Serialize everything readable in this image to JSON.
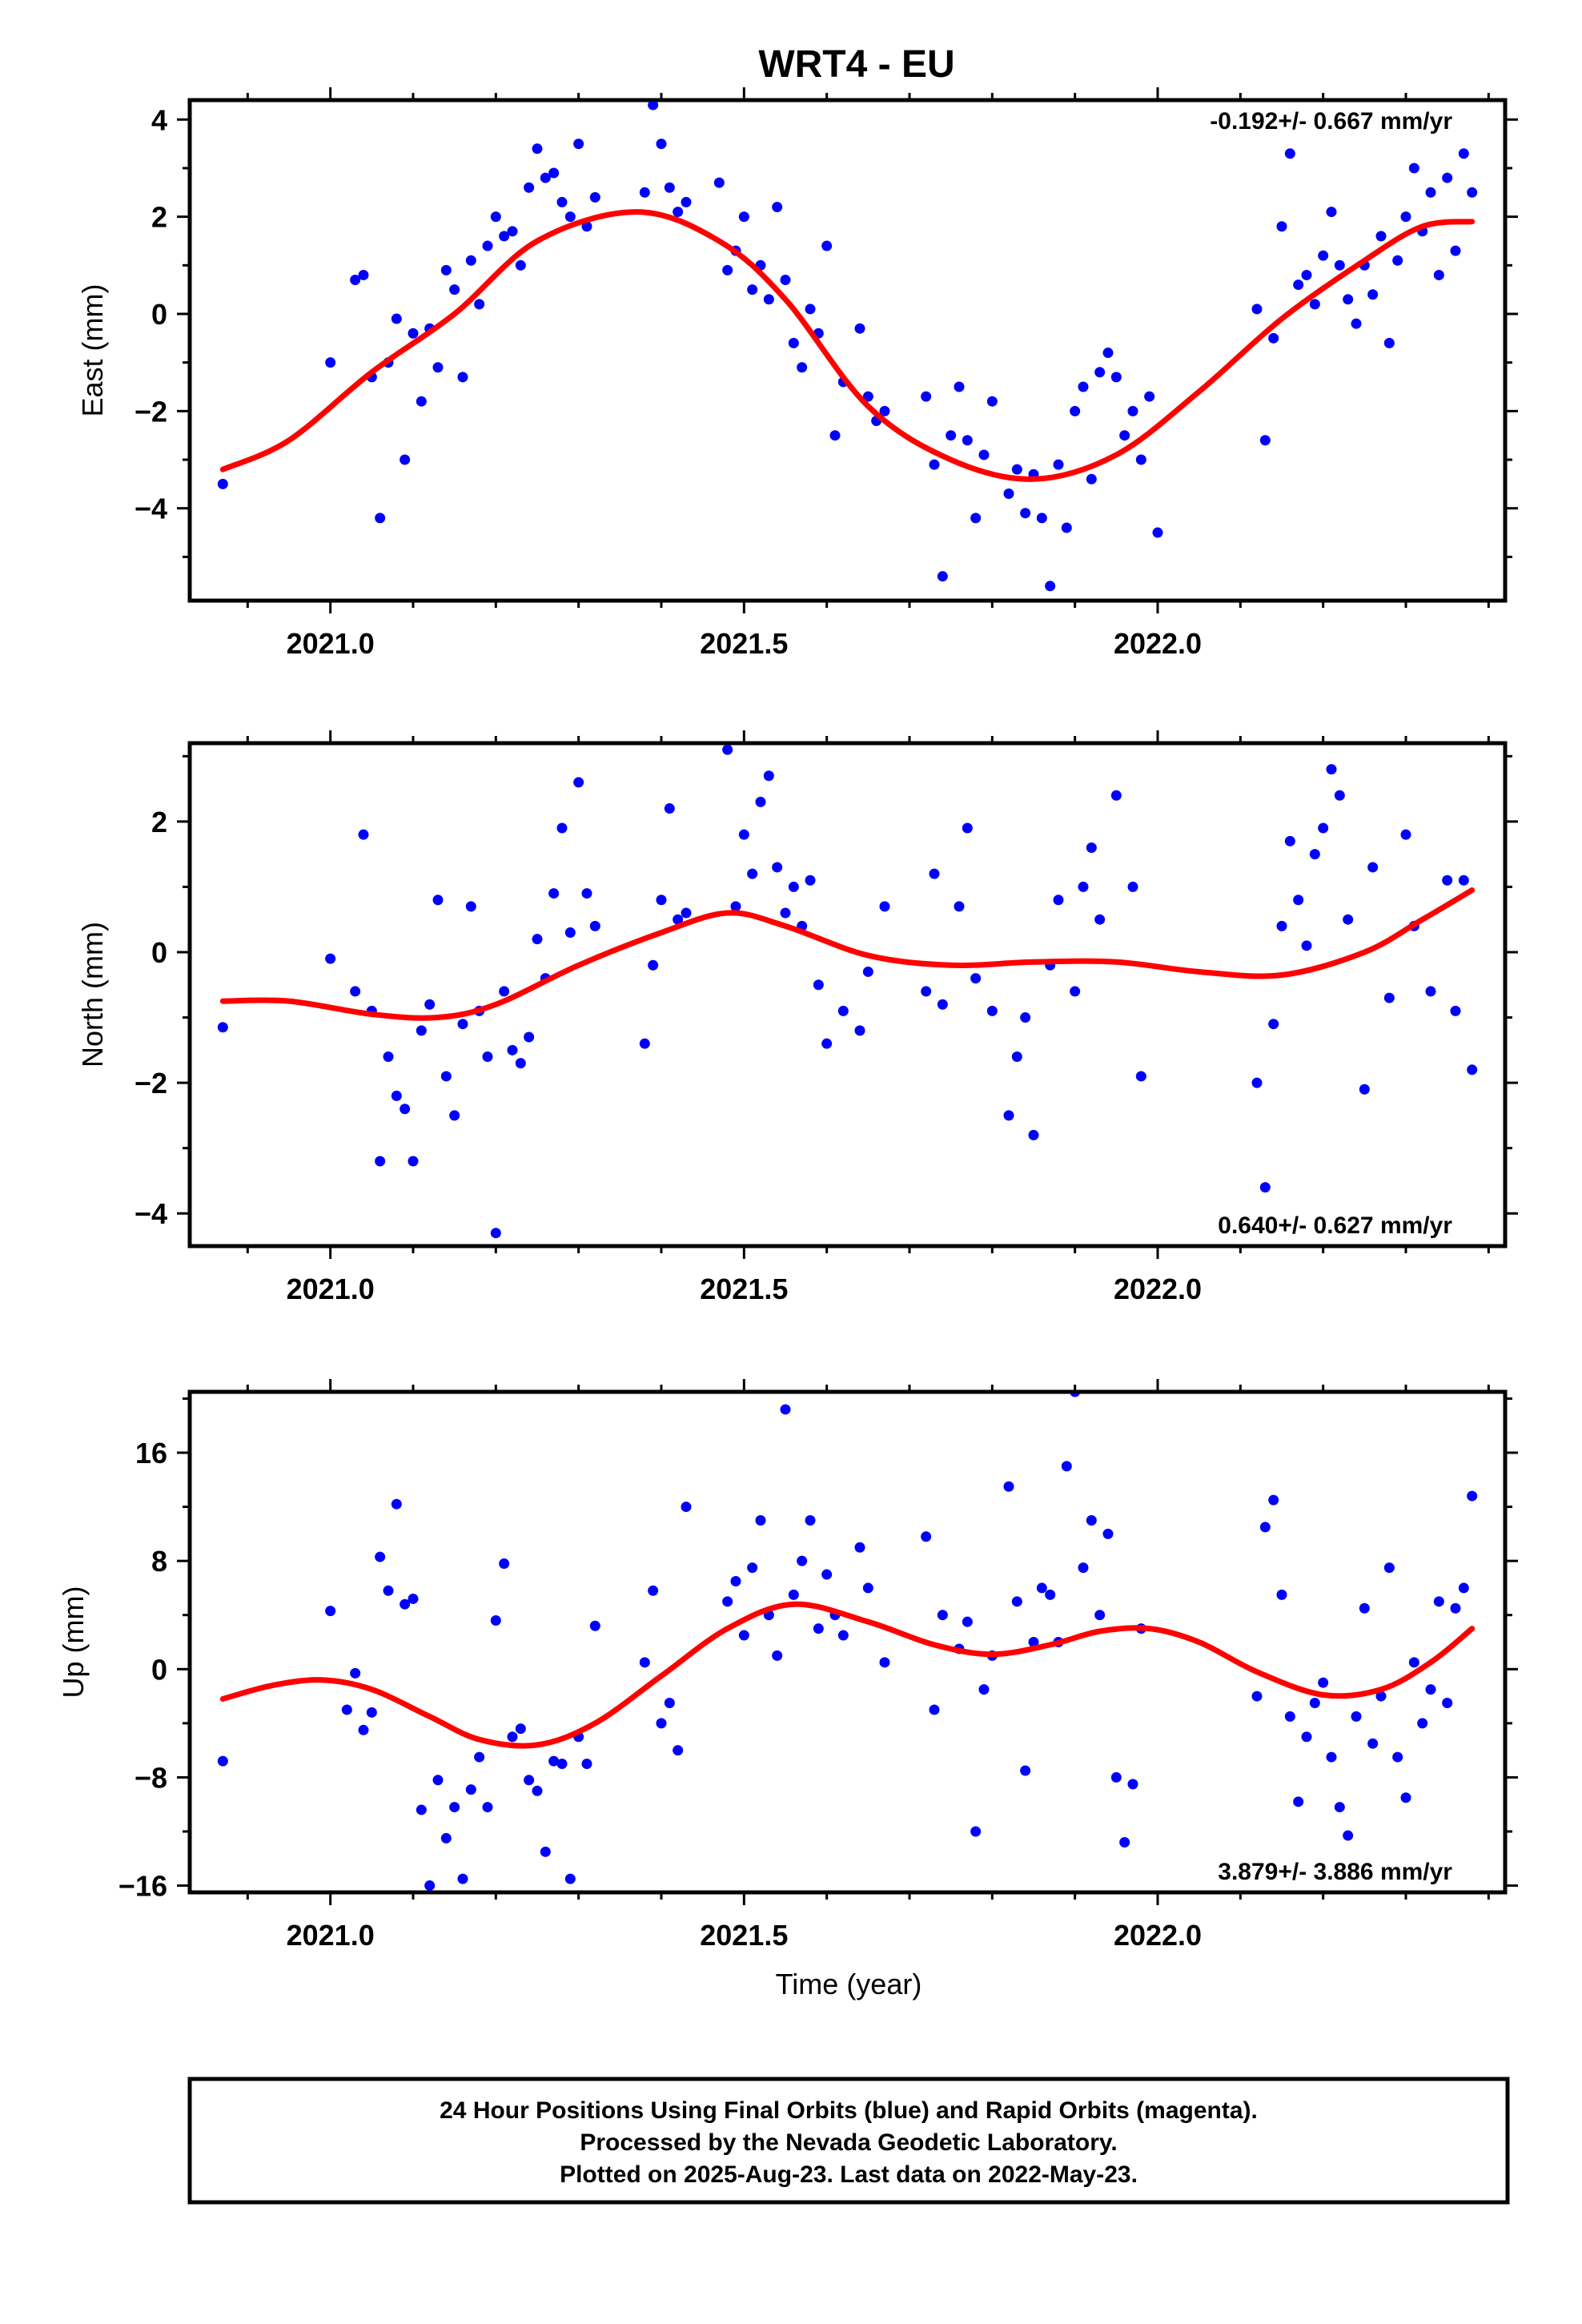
{
  "title": "WRT4 - EU",
  "x_axis_label": "Time (year)",
  "footer": {
    "line1": "24 Hour Positions Using Final Orbits (blue) and Rapid Orbits (magenta).",
    "line2": "Processed by the Nevada Geodetic Laboratory.",
    "line3": "Plotted on 2025-Aug-23. Last data on 2022-May-23."
  },
  "colors": {
    "points": "#0000ff",
    "fit": "#ff0000",
    "axis": "#000000"
  },
  "chart_data": [
    {
      "type": "scatter",
      "panel": "east",
      "ylabel": "East (mm)",
      "rate_text": "-0.192+/- 0.667 mm/yr",
      "rate_position": "top-right",
      "xlim": [
        2020.83,
        2022.42
      ],
      "ylim": [
        -5.9,
        4.4
      ],
      "xticks": [
        2021.0,
        2021.5,
        2022.0
      ],
      "xtick_labels": [
        "2021.0",
        "2021.5",
        "2022.0"
      ],
      "yticks": [
        -4,
        -2,
        0,
        2,
        4
      ],
      "ytick_labels": [
        "−4",
        "−2",
        "0",
        "2",
        "4"
      ],
      "fit_curve": {
        "x": [
          2020.87,
          2020.95,
          2021.05,
          2021.15,
          2021.25,
          2021.37,
          2021.47,
          2021.55,
          2021.65,
          2021.75,
          2021.85,
          2021.95,
          2022.05,
          2022.15,
          2022.25,
          2022.32,
          2022.38
        ],
        "y": [
          -3.2,
          -2.6,
          -1.2,
          0.0,
          1.5,
          2.1,
          1.5,
          0.3,
          -1.9,
          -3.0,
          -3.4,
          -2.9,
          -1.6,
          -0.1,
          1.1,
          1.8,
          1.9
        ]
      },
      "series": [
        {
          "x": [
            2020.87,
            2021.0,
            2021.03,
            2021.04,
            2021.05,
            2021.06,
            2021.07,
            2021.08,
            2021.09,
            2021.1,
            2021.11,
            2021.12,
            2021.13,
            2021.14,
            2021.15,
            2021.16,
            2021.17,
            2021.18,
            2021.19,
            2021.2,
            2021.21,
            2021.22,
            2021.23,
            2021.24,
            2021.25,
            2021.26,
            2021.27,
            2021.28,
            2021.29,
            2021.3,
            2021.31,
            2021.32,
            2021.38,
            2021.39,
            2021.4,
            2021.41,
            2021.42,
            2021.43,
            2021.47,
            2021.48,
            2021.49,
            2021.5,
            2021.51,
            2021.52,
            2021.53,
            2021.54,
            2021.55,
            2021.56,
            2021.57,
            2021.58,
            2021.59,
            2021.6,
            2021.61,
            2021.62,
            2021.64,
            2021.65,
            2021.66,
            2021.67,
            2021.72,
            2021.73,
            2021.74,
            2021.75,
            2021.76,
            2021.77,
            2021.78,
            2021.79,
            2021.8,
            2021.82,
            2021.83,
            2021.84,
            2021.85,
            2021.86,
            2021.87,
            2021.88,
            2021.89,
            2021.9,
            2021.91,
            2021.92,
            2021.93,
            2021.94,
            2021.95,
            2021.96,
            2021.97,
            2021.98,
            2021.99,
            2022.0,
            2022.12,
            2022.13,
            2022.14,
            2022.15,
            2022.16,
            2022.17,
            2022.18,
            2022.19,
            2022.2,
            2022.21,
            2022.22,
            2022.23,
            2022.24,
            2022.25,
            2022.26,
            2022.27,
            2022.28,
            2022.29,
            2022.3,
            2022.31,
            2022.32,
            2022.33,
            2022.34,
            2022.35,
            2022.36,
            2022.37,
            2022.38
          ],
          "y": [
            -3.5,
            -1.0,
            0.7,
            0.8,
            -1.3,
            -4.2,
            -1.0,
            -0.1,
            -3.0,
            -0.4,
            -1.8,
            -0.3,
            -1.1,
            0.9,
            0.5,
            -1.3,
            1.1,
            0.2,
            1.4,
            2.0,
            1.6,
            1.7,
            1.0,
            2.6,
            3.4,
            2.8,
            2.9,
            2.3,
            2.0,
            3.5,
            1.8,
            2.4,
            2.5,
            4.3,
            3.5,
            2.6,
            2.1,
            2.3,
            2.7,
            0.9,
            1.3,
            2.0,
            0.5,
            1.0,
            0.3,
            2.2,
            0.7,
            -0.6,
            -1.1,
            0.1,
            -0.4,
            1.4,
            -2.5,
            -1.4,
            -0.3,
            -1.7,
            -2.2,
            -2.0,
            -1.7,
            -3.1,
            -5.4,
            -2.5,
            -1.5,
            -2.6,
            -4.2,
            -2.9,
            -1.8,
            -3.7,
            -3.2,
            -4.1,
            -3.3,
            -4.2,
            -5.6,
            -3.1,
            -4.4,
            -2.0,
            -1.5,
            -3.4,
            -1.2,
            -0.8,
            -1.3,
            -2.5,
            -2.0,
            -3.0,
            -1.7,
            -4.5,
            0.1,
            -2.6,
            -0.5,
            1.8,
            3.3,
            0.6,
            0.8,
            0.2,
            1.2,
            2.1,
            1.0,
            0.3,
            -0.2,
            1.0,
            0.4,
            1.6,
            -0.6,
            1.1,
            2.0,
            3.0,
            1.7,
            2.5,
            0.8,
            2.8,
            1.3,
            3.3,
            2.5
          ]
        }
      ]
    },
    {
      "type": "scatter",
      "panel": "north",
      "ylabel": "North (mm)",
      "rate_text": "0.640+/- 0.627 mm/yr",
      "rate_position": "bottom-right",
      "xlim": [
        2020.83,
        2022.42
      ],
      "ylim": [
        -4.5,
        3.2
      ],
      "xticks": [
        2021.0,
        2021.5,
        2022.0
      ],
      "xtick_labels": [
        "2021.0",
        "2021.5",
        "2022.0"
      ],
      "yticks": [
        -4,
        -2,
        0,
        2
      ],
      "ytick_labels": [
        "−4",
        "−2",
        "0",
        "2"
      ],
      "fit_curve": {
        "x": [
          2020.87,
          2020.95,
          2021.05,
          2021.13,
          2021.2,
          2021.3,
          2021.4,
          2021.48,
          2021.55,
          2021.65,
          2021.75,
          2021.85,
          2021.95,
          2022.05,
          2022.15,
          2022.25,
          2022.32,
          2022.38
        ],
        "y": [
          -0.75,
          -0.75,
          -0.95,
          -1.0,
          -0.8,
          -0.2,
          0.3,
          0.6,
          0.4,
          -0.05,
          -0.2,
          -0.15,
          -0.15,
          -0.3,
          -0.35,
          0.0,
          0.5,
          0.95
        ]
      },
      "series": [
        {
          "x": [
            2020.87,
            2021.0,
            2021.03,
            2021.04,
            2021.05,
            2021.06,
            2021.07,
            2021.08,
            2021.09,
            2021.1,
            2021.11,
            2021.12,
            2021.13,
            2021.14,
            2021.15,
            2021.16,
            2021.17,
            2021.18,
            2021.19,
            2021.2,
            2021.21,
            2021.22,
            2021.23,
            2021.24,
            2021.25,
            2021.26,
            2021.27,
            2021.28,
            2021.29,
            2021.3,
            2021.31,
            2021.32,
            2021.38,
            2021.39,
            2021.4,
            2021.41,
            2021.42,
            2021.43,
            2021.48,
            2021.49,
            2021.5,
            2021.51,
            2021.52,
            2021.53,
            2021.54,
            2021.55,
            2021.56,
            2021.57,
            2021.58,
            2021.59,
            2021.6,
            2021.62,
            2021.64,
            2021.65,
            2021.67,
            2021.72,
            2021.73,
            2021.74,
            2021.76,
            2021.77,
            2021.78,
            2021.8,
            2021.82,
            2021.83,
            2021.84,
            2021.85,
            2021.87,
            2021.88,
            2021.9,
            2021.91,
            2021.92,
            2021.93,
            2021.95,
            2021.97,
            2021.98,
            2022.12,
            2022.13,
            2022.14,
            2022.15,
            2022.16,
            2022.17,
            2022.18,
            2022.19,
            2022.2,
            2022.21,
            2022.22,
            2022.23,
            2022.25,
            2022.26,
            2022.28,
            2022.3,
            2022.31,
            2022.33,
            2022.35,
            2022.36,
            2022.37,
            2022.38
          ],
          "y": [
            -1.15,
            -0.1,
            -0.6,
            1.8,
            -0.9,
            -3.2,
            -1.6,
            -2.2,
            -2.4,
            -3.2,
            -1.2,
            -0.8,
            0.8,
            -1.9,
            -2.5,
            -1.1,
            0.7,
            -0.9,
            -1.6,
            -4.3,
            -0.6,
            -1.5,
            -1.7,
            -1.3,
            0.2,
            -0.4,
            0.9,
            1.9,
            0.3,
            2.6,
            0.9,
            0.4,
            -1.4,
            -0.2,
            0.8,
            2.2,
            0.5,
            0.6,
            3.1,
            0.7,
            1.8,
            1.2,
            2.3,
            2.7,
            1.3,
            0.6,
            1.0,
            0.4,
            1.1,
            -0.5,
            -1.4,
            -0.9,
            -1.2,
            -0.3,
            0.7,
            -0.6,
            1.2,
            -0.8,
            0.7,
            1.9,
            -0.4,
            -0.9,
            -2.5,
            -1.6,
            -1.0,
            -2.8,
            -0.2,
            0.8,
            -0.6,
            1.0,
            1.6,
            0.5,
            2.4,
            1.0,
            -1.9,
            -2.0,
            -3.6,
            -1.1,
            0.4,
            1.7,
            0.8,
            0.1,
            1.5,
            1.9,
            2.8,
            2.4,
            0.5,
            -2.1,
            1.3,
            -0.7,
            1.8,
            0.4,
            -0.6,
            1.1,
            -0.9,
            1.1,
            -1.8
          ]
        }
      ]
    },
    {
      "type": "scatter",
      "panel": "up",
      "ylabel": "Up (mm)",
      "rate_text": "3.879+/- 3.886 mm/yr",
      "rate_position": "bottom-right",
      "xlim": [
        2020.83,
        2022.42
      ],
      "ylim": [
        -16.5,
        20.5
      ],
      "xticks": [
        2021.0,
        2021.5,
        2022.0
      ],
      "xtick_labels": [
        "2021.0",
        "2021.5",
        "2022.0"
      ],
      "yticks": [
        -16,
        -8,
        0,
        8,
        16
      ],
      "ytick_labels": [
        "−16",
        "−8",
        "0",
        "8",
        "16"
      ],
      "fit_curve": {
        "x": [
          2020.87,
          2020.93,
          2020.99,
          2021.05,
          2021.12,
          2021.18,
          2021.25,
          2021.32,
          2021.4,
          2021.48,
          2021.56,
          2021.65,
          2021.73,
          2021.8,
          2021.87,
          2021.93,
          2021.99,
          2022.05,
          2022.12,
          2022.2,
          2022.27,
          2022.33,
          2022.38
        ],
        "y": [
          -2.2,
          -1.2,
          -0.8,
          -1.5,
          -3.5,
          -5.2,
          -5.6,
          -4.0,
          -0.5,
          3.0,
          4.8,
          3.5,
          1.8,
          1.1,
          1.8,
          2.8,
          3.0,
          2.0,
          -0.2,
          -1.9,
          -1.5,
          0.5,
          3.0
        ]
      },
      "series": [
        {
          "x": [
            2020.87,
            2021.0,
            2021.02,
            2021.03,
            2021.04,
            2021.05,
            2021.06,
            2021.07,
            2021.08,
            2021.09,
            2021.1,
            2021.11,
            2021.12,
            2021.13,
            2021.14,
            2021.15,
            2021.16,
            2021.17,
            2021.18,
            2021.19,
            2021.2,
            2021.21,
            2021.22,
            2021.23,
            2021.24,
            2021.25,
            2021.26,
            2021.27,
            2021.28,
            2021.29,
            2021.3,
            2021.31,
            2021.32,
            2021.38,
            2021.39,
            2021.4,
            2021.41,
            2021.42,
            2021.43,
            2021.48,
            2021.49,
            2021.5,
            2021.51,
            2021.52,
            2021.53,
            2021.54,
            2021.55,
            2021.56,
            2021.57,
            2021.58,
            2021.59,
            2021.6,
            2021.61,
            2021.62,
            2021.64,
            2021.65,
            2021.67,
            2021.72,
            2021.73,
            2021.74,
            2021.76,
            2021.77,
            2021.78,
            2021.79,
            2021.8,
            2021.82,
            2021.83,
            2021.84,
            2021.85,
            2021.86,
            2021.87,
            2021.88,
            2021.89,
            2021.9,
            2021.91,
            2021.92,
            2021.93,
            2021.94,
            2021.95,
            2021.96,
            2021.97,
            2021.98,
            2022.12,
            2022.13,
            2022.14,
            2022.15,
            2022.16,
            2022.17,
            2022.18,
            2022.19,
            2022.2,
            2022.21,
            2022.22,
            2022.23,
            2022.24,
            2022.25,
            2022.26,
            2022.27,
            2022.28,
            2022.29,
            2022.3,
            2022.31,
            2022.32,
            2022.33,
            2022.34,
            2022.35,
            2022.36,
            2022.37,
            2022.38
          ],
          "y": [
            -6.8,
            4.3,
            -3.0,
            -0.3,
            -4.5,
            -3.2,
            8.3,
            5.8,
            12.2,
            4.8,
            5.2,
            -10.4,
            -16.0,
            -8.2,
            -12.5,
            -10.2,
            -15.5,
            -8.9,
            -6.5,
            -10.2,
            3.6,
            7.8,
            -5.0,
            -4.4,
            -8.2,
            -9.0,
            -13.5,
            -6.8,
            -7.0,
            -15.5,
            -5.0,
            -7.0,
            3.2,
            0.5,
            5.8,
            -4.0,
            -2.5,
            -6.0,
            12.0,
            5.0,
            6.5,
            2.5,
            7.5,
            11.0,
            4.0,
            1.0,
            19.2,
            5.5,
            8.0,
            11.0,
            3.0,
            7.0,
            4.0,
            2.5,
            9.0,
            6.0,
            0.5,
            9.8,
            -3.0,
            4.0,
            1.5,
            3.5,
            -12.0,
            -1.5,
            1.0,
            13.5,
            5.0,
            -7.5,
            2.0,
            6.0,
            5.5,
            2.0,
            15.0,
            20.5,
            7.5,
            11.0,
            4.0,
            10.0,
            -8.0,
            -12.8,
            -8.5,
            3.0,
            -2.0,
            10.5,
            12.5,
            5.5,
            -3.5,
            -9.8,
            -5.0,
            -2.5,
            -1.0,
            -6.5,
            -10.2,
            -12.3,
            -3.5,
            4.5,
            -5.5,
            -2.0,
            7.5,
            -6.5,
            -9.5,
            0.5,
            -4.0,
            -1.5,
            5.0,
            -2.5,
            4.5,
            6.0,
            12.8
          ]
        }
      ]
    }
  ]
}
